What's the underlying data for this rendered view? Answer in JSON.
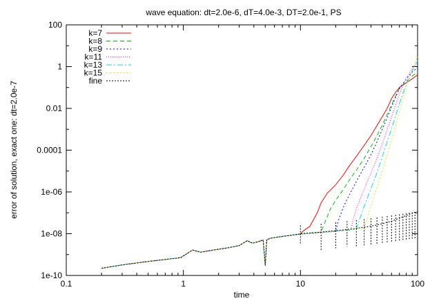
{
  "chart_data": {
    "type": "line",
    "title": "wave equation: dt=2.0e-6, dT=4.0e-3, DT=2.0e-1, PS",
    "xlabel": "time",
    "ylabel": "error of solution, exact one: dt=2.0e-7",
    "x_scale": "log",
    "y_scale": "log",
    "xlim": [
      0.1,
      100
    ],
    "ylim": [
      1e-10,
      100
    ],
    "x_ticks": [
      {
        "value": 0.1,
        "label": "0.1"
      },
      {
        "value": 1,
        "label": "1"
      },
      {
        "value": 10,
        "label": "10"
      },
      {
        "value": 100,
        "label": "100"
      }
    ],
    "y_ticks": [
      {
        "value": 1e-10,
        "label": "1e-10"
      },
      {
        "value": 1e-08,
        "label": "1e-08"
      },
      {
        "value": 1e-06,
        "label": "1e-06"
      },
      {
        "value": 0.0001,
        "label": "0.0001"
      },
      {
        "value": 0.01,
        "label": "0.01"
      },
      {
        "value": 1,
        "label": "1"
      },
      {
        "value": 100,
        "label": "100"
      }
    ],
    "grid": false,
    "legend_position": "top-left",
    "common_prefix": {
      "x": [
        0.2,
        0.3,
        0.5,
        0.7,
        0.95,
        1.2,
        1.4,
        1.8,
        2.4,
        3.0,
        3.5,
        3.9,
        4.4,
        4.8,
        5.0,
        5.15,
        5.5,
        6.0,
        6.5,
        7.5,
        8.5,
        9.5
      ],
      "y": [
        2.2e-10,
        3.2e-10,
        4.7e-10,
        5.8e-10,
        7.2e-10,
        1.65e-09,
        1.3e-09,
        1.65e-09,
        2.1e-09,
        2.7e-09,
        4.6e-09,
        3.5e-09,
        4.2e-09,
        5e-09,
        3e-10,
        5e-09,
        6e-09,
        6.5e-09,
        7e-09,
        7.8e-09,
        8.6e-09,
        9.3e-09
      ]
    },
    "series": [
      {
        "name": "k=7",
        "color": "#ff0000",
        "dash": "solid",
        "x": [
          10,
          10.5,
          11,
          12,
          13,
          14,
          15,
          17,
          20,
          23,
          26,
          30,
          35,
          40,
          45,
          50,
          55,
          60,
          65,
          70,
          80,
          90,
          100
        ],
        "y": [
          1e-08,
          1.3e-08,
          1.6e-08,
          2.2e-08,
          5e-08,
          1.1e-07,
          3e-07,
          9e-07,
          2.2e-06,
          6e-06,
          1.7e-05,
          5e-05,
          0.00017,
          0.0005,
          0.0015,
          0.004,
          0.01,
          0.03,
          0.06,
          0.1,
          0.17,
          0.26,
          0.4
        ]
      },
      {
        "name": "k=8",
        "color": "#00c000",
        "dash": "6,4",
        "x": [
          15,
          16,
          18,
          20,
          23,
          26,
          30,
          35,
          40,
          45,
          50,
          55,
          60,
          65,
          70,
          80,
          90,
          100
        ],
        "y": [
          1.2e-08,
          3e-08,
          1.5e-07,
          4e-07,
          1.2e-06,
          3.5e-06,
          1.1e-05,
          4e-05,
          0.00015,
          0.0005,
          0.0016,
          0.005,
          0.015,
          0.04,
          0.09,
          0.2,
          0.35,
          0.55
        ]
      },
      {
        "name": "k=9",
        "color": "#0000ff",
        "dash": "2,3",
        "x": [
          20,
          21,
          23,
          25,
          28,
          31,
          35,
          40,
          45,
          50,
          55,
          60,
          65,
          70,
          80,
          90,
          100
        ],
        "y": [
          1.3e-08,
          4e-08,
          1.6e-07,
          4.5e-07,
          1.5e-06,
          4.5e-06,
          1.5e-05,
          6e-05,
          0.00025,
          0.001,
          0.0035,
          0.012,
          0.035,
          0.09,
          0.26,
          0.55,
          0.9
        ]
      },
      {
        "name": "k=11",
        "color": "#ff00ff",
        "dash": "1,2",
        "x": [
          27,
          28,
          30,
          33,
          36,
          40,
          45,
          50,
          55,
          60,
          65,
          70,
          80,
          90,
          100
        ],
        "y": [
          1.5e-08,
          4e-08,
          1.6e-07,
          6e-07,
          2e-06,
          8e-06,
          4e-05,
          0.0002,
          0.0009,
          0.004,
          0.015,
          0.05,
          0.27,
          0.8,
          1.6
        ]
      },
      {
        "name": "k=13",
        "color": "#00e0e0",
        "dash": "8,3,2,3",
        "x": [
          30,
          32,
          35,
          38,
          42,
          46,
          50,
          55,
          60,
          65,
          70,
          80,
          90,
          100
        ],
        "y": [
          1.6e-08,
          5e-08,
          2e-07,
          7e-07,
          3e-06,
          1.2e-05,
          5e-05,
          0.00025,
          0.0011,
          0.0045,
          0.017,
          0.15,
          0.6,
          1.9
        ]
      },
      {
        "name": "k=15",
        "color": "#e6e600",
        "dash": "2,3",
        "x": [
          35,
          37,
          40,
          43,
          47,
          51,
          55,
          60,
          65,
          70,
          80,
          90,
          100
        ],
        "y": [
          1.8e-08,
          5e-08,
          2e-07,
          8e-07,
          3.5e-06,
          1.5e-05,
          6e-05,
          0.0003,
          0.0015,
          0.007,
          0.1,
          0.7,
          3.0
        ]
      },
      {
        "name": "fine",
        "color": "#000000",
        "dash": "2,2",
        "x": [
          10,
          15,
          20,
          30,
          40,
          50,
          60,
          70,
          80,
          90,
          100
        ],
        "y": [
          1e-08,
          1.2e-08,
          1.4e-08,
          1.8e-08,
          2.3e-08,
          3e-08,
          4e-08,
          5.5e-08,
          7.5e-08,
          9.5e-08,
          1.2e-07
        ]
      }
    ],
    "dips": [
      {
        "x": 10,
        "y": 3e-09
      },
      {
        "x": 15,
        "y": 1.5e-09
      },
      {
        "x": 20,
        "y": 2e-09
      },
      {
        "x": 25,
        "y": 2.5e-09
      },
      {
        "x": 30,
        "y": 2.5e-09
      },
      {
        "x": 35,
        "y": 2.8e-09
      },
      {
        "x": 40,
        "y": 3e-09
      },
      {
        "x": 45,
        "y": 3.2e-09
      },
      {
        "x": 50,
        "y": 3.5e-09
      },
      {
        "x": 55,
        "y": 3.5e-09
      },
      {
        "x": 60,
        "y": 3.8e-09
      },
      {
        "x": 65,
        "y": 4e-09
      },
      {
        "x": 70,
        "y": 4.2e-09
      },
      {
        "x": 75,
        "y": 4.5e-09
      },
      {
        "x": 80,
        "y": 4.8e-09
      },
      {
        "x": 85,
        "y": 5e-09
      },
      {
        "x": 90,
        "y": 5.3e-09
      },
      {
        "x": 95,
        "y": 5.5e-09
      }
    ]
  }
}
